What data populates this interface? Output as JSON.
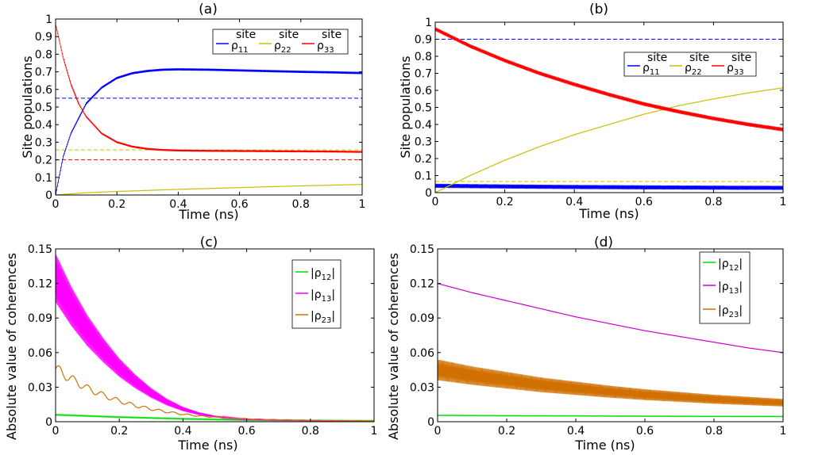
{
  "figure": {
    "background": "#ffffff"
  },
  "chart_data": [
    {
      "id": "a",
      "type": "line",
      "title": "(a)",
      "xlabel": "Time (ns)",
      "ylabel": "Site populations",
      "xlim": [
        0,
        1
      ],
      "ylim": [
        0,
        1
      ],
      "xticks": [
        "0",
        "0.2",
        "0.4",
        "0.6",
        "0.8",
        "1"
      ],
      "xtick_values": [
        0,
        0.2,
        0.4,
        0.6,
        0.8,
        1
      ],
      "yticks": [
        "0",
        "0.1",
        "0.2",
        "0.3",
        "0.4",
        "0.5",
        "0.6",
        "0.7",
        "0.8",
        "0.9",
        "1"
      ],
      "ytick_values": [
        0,
        0.1,
        0.2,
        0.3,
        0.4,
        0.5,
        0.6,
        0.7,
        0.8,
        0.9,
        1
      ],
      "legend": {
        "placement": "top-right",
        "orientation": "horizontal",
        "superscript": "site"
      },
      "series": [
        {
          "name": "ρ11",
          "legend_base": "ρ",
          "legend_sub": "11",
          "color": "#0000ff",
          "x": [
            0,
            0.025,
            0.05,
            0.1,
            0.15,
            0.2,
            0.25,
            0.3,
            0.35,
            0.4,
            0.5,
            0.6,
            0.7,
            0.8,
            0.9,
            1.0
          ],
          "y": [
            0,
            0.22,
            0.35,
            0.52,
            0.61,
            0.665,
            0.692,
            0.705,
            0.712,
            0.714,
            0.712,
            0.708,
            0.704,
            0.7,
            0.697,
            0.693
          ],
          "band": 0.012
        },
        {
          "name": "ρ22",
          "legend_base": "ρ",
          "legend_sub": "22",
          "color": "#c8c000",
          "x": [
            0,
            0.1,
            0.2,
            0.3,
            0.4,
            0.5,
            0.6,
            0.7,
            0.8,
            0.9,
            1.0
          ],
          "y": [
            0,
            0.013,
            0.02,
            0.026,
            0.032,
            0.037,
            0.042,
            0.047,
            0.052,
            0.056,
            0.06
          ]
        },
        {
          "name": "ρ33",
          "legend_base": "ρ",
          "legend_sub": "33",
          "color": "#ff0000",
          "x": [
            0,
            0.025,
            0.05,
            0.075,
            0.1,
            0.15,
            0.2,
            0.25,
            0.3,
            0.35,
            0.4,
            0.5,
            0.6,
            0.7,
            0.8,
            0.9,
            1.0
          ],
          "y": [
            0.97,
            0.78,
            0.63,
            0.52,
            0.445,
            0.35,
            0.3,
            0.275,
            0.262,
            0.256,
            0.253,
            0.251,
            0.25,
            0.249,
            0.248,
            0.247,
            0.245
          ],
          "band": 0.01
        }
      ],
      "reference_lines": [
        {
          "y": 0.55,
          "color": "#0000ff"
        },
        {
          "y": 0.256,
          "color": "#c8c000"
        },
        {
          "y": 0.2,
          "color": "#ff0000"
        }
      ]
    },
    {
      "id": "b",
      "type": "line",
      "title": "(b)",
      "xlabel": "Time (ns)",
      "ylabel": "Site populations",
      "xlim": [
        0,
        1
      ],
      "ylim": [
        0,
        1
      ],
      "xticks": [
        "0",
        "0.2",
        "0.4",
        "0.6",
        "0.8",
        "1"
      ],
      "xtick_values": [
        0,
        0.2,
        0.4,
        0.6,
        0.8,
        1
      ],
      "yticks": [
        "0",
        "0.1",
        "0.2",
        "0.3",
        "0.4",
        "0.5",
        "0.6",
        "0.7",
        "0.8",
        "0.9",
        "1"
      ],
      "ytick_values": [
        0,
        0.1,
        0.2,
        0.3,
        0.4,
        0.5,
        0.6,
        0.7,
        0.8,
        0.9,
        1
      ],
      "legend": {
        "placement": "top-right",
        "orientation": "horizontal",
        "superscript": "site"
      },
      "series": [
        {
          "name": "ρ11",
          "legend_base": "ρ",
          "legend_sub": "11",
          "color": "#0000ff",
          "x": [
            0,
            0.2,
            0.4,
            0.6,
            0.8,
            1.0
          ],
          "y": [
            0.04,
            0.036,
            0.033,
            0.031,
            0.029,
            0.028
          ],
          "band": 0.024
        },
        {
          "name": "ρ22",
          "legend_base": "ρ",
          "legend_sub": "22",
          "color": "#c8c000",
          "x": [
            0,
            0.05,
            0.1,
            0.2,
            0.3,
            0.4,
            0.5,
            0.6,
            0.7,
            0.8,
            0.9,
            1.0
          ],
          "y": [
            0,
            0.05,
            0.1,
            0.19,
            0.27,
            0.34,
            0.4,
            0.46,
            0.51,
            0.55,
            0.585,
            0.615
          ]
        },
        {
          "name": "ρ33",
          "legend_base": "ρ",
          "legend_sub": "33",
          "color": "#ff0000",
          "x": [
            0,
            0.1,
            0.2,
            0.3,
            0.4,
            0.5,
            0.6,
            0.7,
            0.8,
            0.9,
            1.0
          ],
          "y": [
            0.96,
            0.86,
            0.775,
            0.7,
            0.635,
            0.575,
            0.52,
            0.475,
            0.435,
            0.4,
            0.37
          ],
          "band": 0.022
        }
      ],
      "reference_lines": [
        {
          "y": 0.9,
          "color": "#0000ff"
        },
        {
          "y": 0.065,
          "color": "#c8c000"
        }
      ]
    },
    {
      "id": "c",
      "type": "line",
      "title": "(c)",
      "xlabel": "Time (ns)",
      "ylabel": "Absolute value of coherences",
      "xlim": [
        0,
        1
      ],
      "ylim": [
        0,
        0.15
      ],
      "xticks": [
        "0",
        "0.2",
        "0.4",
        "0.6",
        "0.8",
        "1"
      ],
      "xtick_values": [
        0,
        0.2,
        0.4,
        0.6,
        0.8,
        1
      ],
      "yticks": [
        "0",
        "0.03",
        "0.06",
        "0.09",
        "0.12",
        "0.15"
      ],
      "ytick_values": [
        0,
        0.03,
        0.06,
        0.09,
        0.12,
        0.15
      ],
      "legend": {
        "placement": "top-right",
        "orientation": "vertical"
      },
      "series": [
        {
          "name": "|ρ12|",
          "legend_base": "|ρ",
          "legend_sub": "12",
          "legend_end": "|",
          "color": "#00dd00",
          "x": [
            0,
            0.2,
            0.4,
            0.6,
            0.8,
            1.0
          ],
          "y": [
            0.006,
            0.004,
            0.0025,
            0.0015,
            0.001,
            0.0007
          ],
          "band": 0.0008
        },
        {
          "name": "|ρ13|",
          "legend_base": "|ρ",
          "legend_sub": "13",
          "legend_end": "|",
          "color": "#ff00ff",
          "x": [
            0,
            0.05,
            0.1,
            0.15,
            0.2,
            0.25,
            0.3,
            0.35,
            0.4,
            0.45,
            0.5,
            0.6,
            0.7,
            0.8,
            0.9,
            1.0
          ],
          "y": [
            0.125,
            0.1,
            0.079,
            0.062,
            0.047,
            0.035,
            0.025,
            0.017,
            0.011,
            0.007,
            0.0045,
            0.002,
            0.0012,
            0.0008,
            0.0005,
            0.0004
          ],
          "band_frac": 0.17
        },
        {
          "name": "|ρ23|",
          "legend_base": "|ρ",
          "legend_sub": "23",
          "legend_end": "|",
          "color": "#d07000",
          "x": [
            0,
            0.05,
            0.1,
            0.15,
            0.2,
            0.25,
            0.3,
            0.35,
            0.4,
            0.45,
            0.5,
            0.6,
            0.7,
            0.8,
            0.9,
            1.0
          ],
          "y": [
            0.046,
            0.037,
            0.029,
            0.023,
            0.018,
            0.014,
            0.011,
            0.0085,
            0.0065,
            0.005,
            0.004,
            0.0025,
            0.0017,
            0.0012,
            0.0009,
            0.0007
          ],
          "wiggle": 0.1
        }
      ]
    },
    {
      "id": "d",
      "type": "line",
      "title": "(d)",
      "xlabel": "Time (ns)",
      "ylabel": "Absolute value of coherences",
      "xlim": [
        0,
        1
      ],
      "ylim": [
        0,
        0.15
      ],
      "xticks": [
        "0",
        "0.2",
        "0.4",
        "0.6",
        "0.8",
        "1"
      ],
      "xtick_values": [
        0,
        0.2,
        0.4,
        0.6,
        0.8,
        1
      ],
      "yticks": [
        "0",
        "0.03",
        "0.06",
        "0.09",
        "0.12",
        "0.15"
      ],
      "ytick_values": [
        0,
        0.03,
        0.06,
        0.09,
        0.12,
        0.15
      ],
      "legend": {
        "placement": "top-right",
        "orientation": "vertical"
      },
      "series": [
        {
          "name": "|ρ12|",
          "legend_base": "|ρ",
          "legend_sub": "12",
          "legend_end": "|",
          "color": "#00dd00",
          "x": [
            0,
            0.2,
            0.4,
            0.6,
            0.8,
            1.0
          ],
          "y": [
            0.0055,
            0.0052,
            0.005,
            0.0048,
            0.0046,
            0.0045
          ],
          "band": 0.0006
        },
        {
          "name": "|ρ13|",
          "legend_base": "|ρ",
          "legend_sub": "13",
          "legend_end": "|",
          "color": "#cc00cc",
          "x": [
            0,
            0.1,
            0.2,
            0.3,
            0.4,
            0.5,
            0.6,
            0.7,
            0.8,
            0.9,
            1.0
          ],
          "y": [
            0.12,
            0.112,
            0.105,
            0.098,
            0.091,
            0.085,
            0.079,
            0.074,
            0.069,
            0.064,
            0.06
          ]
        },
        {
          "name": "|ρ23|",
          "legend_base": "|ρ",
          "legend_sub": "23",
          "legend_end": "|",
          "color": "#d07000",
          "x": [
            0,
            0.1,
            0.2,
            0.3,
            0.4,
            0.5,
            0.6,
            0.7,
            0.8,
            0.9,
            1.0
          ],
          "y": [
            0.045,
            0.04,
            0.036,
            0.032,
            0.029,
            0.026,
            0.0235,
            0.0215,
            0.0195,
            0.018,
            0.0165
          ],
          "band_frac": 0.2
        }
      ]
    }
  ]
}
